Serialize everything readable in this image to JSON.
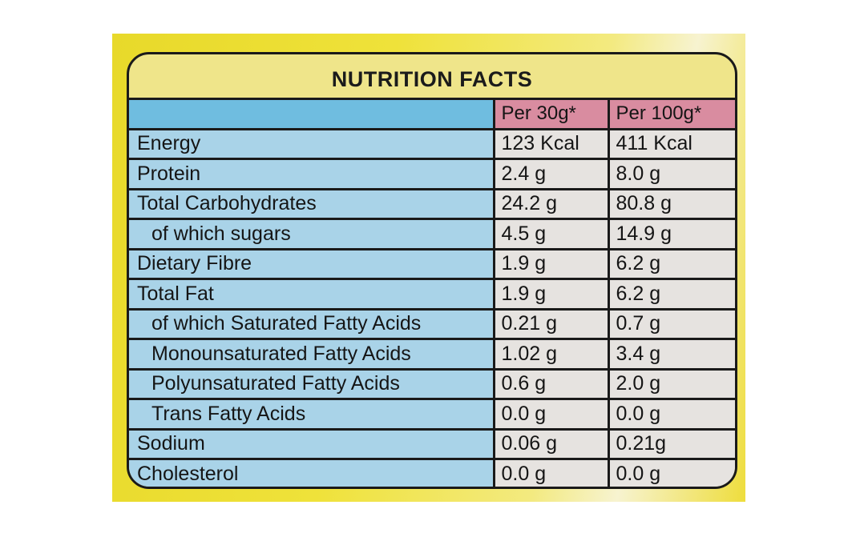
{
  "title": "NUTRITION FACTS",
  "columns": [
    "Per 30g*",
    "Per 100g*"
  ],
  "rows": [
    {
      "label": "Energy",
      "per30": "123 Kcal",
      "per100": "411 Kcal",
      "indent": false
    },
    {
      "label": "Protein",
      "per30": "2.4 g",
      "per100": "8.0 g",
      "indent": false
    },
    {
      "label": "Total Carbohydrates",
      "per30": "24.2 g",
      "per100": "80.8 g",
      "indent": false
    },
    {
      "label": "of which sugars",
      "per30": "4.5 g",
      "per100": "14.9 g",
      "indent": true
    },
    {
      "label": "Dietary Fibre",
      "per30": "1.9 g",
      "per100": "6.2 g",
      "indent": false
    },
    {
      "label": "Total Fat",
      "per30": "1.9 g",
      "per100": "6.2 g",
      "indent": false
    },
    {
      "label": "of which Saturated Fatty Acids",
      "per30": "0.21 g",
      "per100": "0.7 g",
      "indent": true
    },
    {
      "label": "Monounsaturated Fatty Acids",
      "per30": "1.02 g",
      "per100": "3.4 g",
      "indent": true
    },
    {
      "label": "Polyunsaturated Fatty Acids",
      "per30": "0.6 g",
      "per100": "2.0 g",
      "indent": true
    },
    {
      "label": "Trans Fatty Acids",
      "per30": "0.0 g",
      "per100": "0.0 g",
      "indent": true
    },
    {
      "label": "Sodium",
      "per30": "0.06 g",
      "per100": "0.21g",
      "indent": false
    },
    {
      "label": "Cholesterol",
      "per30": "0.0 g",
      "per100": "0.0 g",
      "indent": false
    }
  ]
}
